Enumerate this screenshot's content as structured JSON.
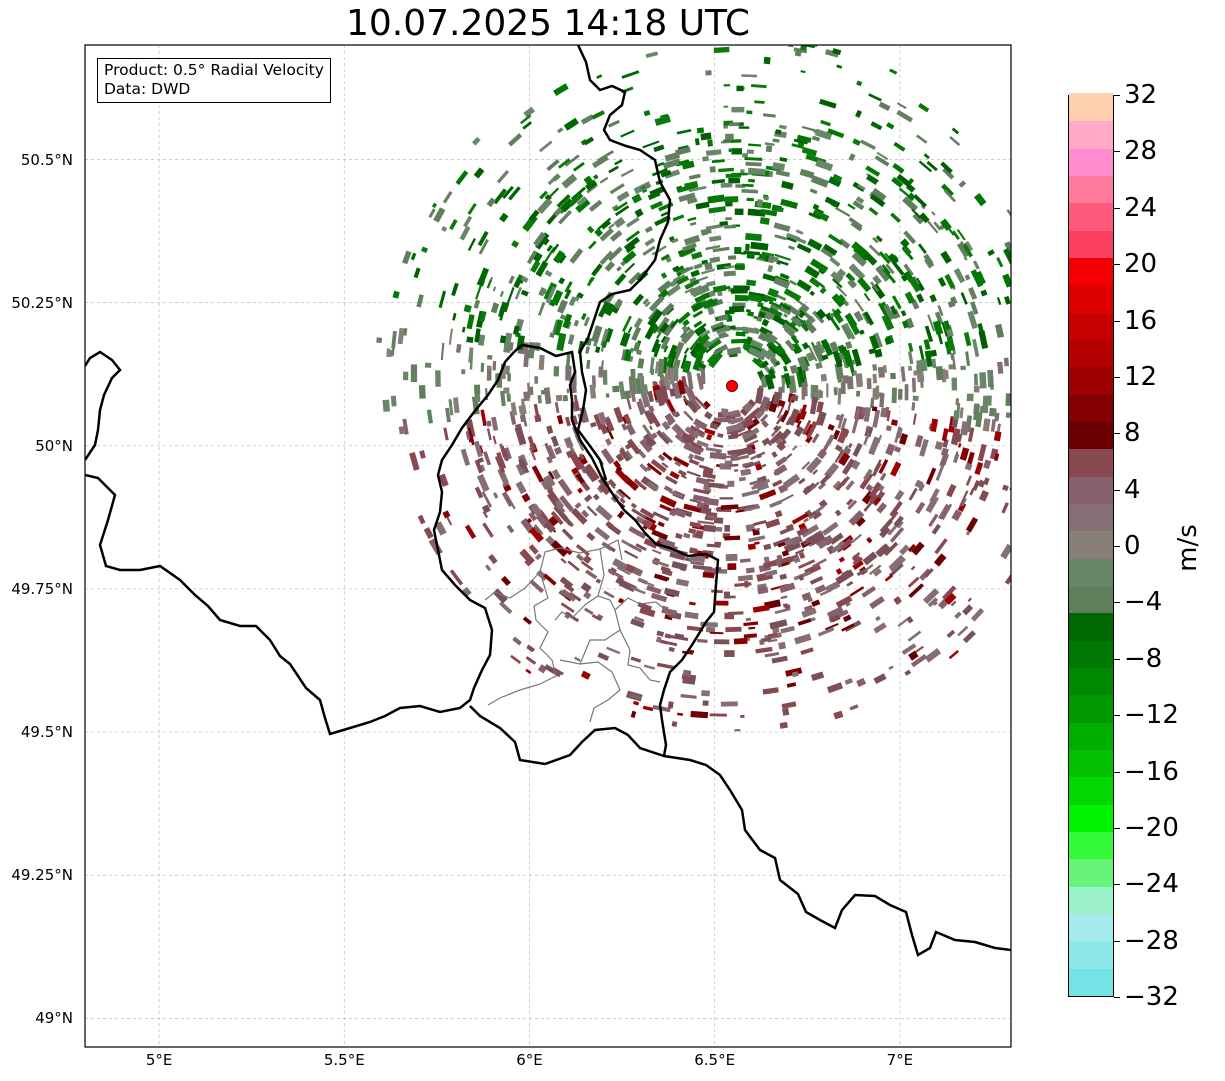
{
  "title": "10.07.2025 14:18 UTC",
  "info": {
    "product_line": "Product: 0.5° Radial Velocity",
    "data_line": "Data: DWD"
  },
  "map": {
    "lon_range": [
      4.8,
      7.3
    ],
    "lat_range": [
      48.95,
      50.7
    ],
    "grid_lines": true,
    "radar_site": {
      "lon": 6.548,
      "lat": 50.109,
      "marker": "red-circle"
    },
    "lat_ticks": [
      {
        "value": 50.5,
        "label": "50.5°N"
      },
      {
        "value": 50.25,
        "label": "50.25°N"
      },
      {
        "value": 50.0,
        "label": "50°N"
      },
      {
        "value": 49.75,
        "label": "49.75°N"
      },
      {
        "value": 49.5,
        "label": "49.5°N"
      },
      {
        "value": 49.25,
        "label": "49.25°N"
      },
      {
        "value": 49.0,
        "label": "49°N"
      }
    ],
    "lon_ticks": [
      {
        "value": 5.0,
        "label": "5°E"
      },
      {
        "value": 5.5,
        "label": "5.5°E"
      },
      {
        "value": 6.0,
        "label": "6°E"
      },
      {
        "value": 6.5,
        "label": "6.5°E"
      },
      {
        "value": 7.0,
        "label": "7°E"
      }
    ]
  },
  "colorbar": {
    "unit": "m/s",
    "min": -32,
    "max": 32,
    "step": 4,
    "tick_labels": [
      "32",
      "28",
      "24",
      "20",
      "16",
      "12",
      "8",
      "4",
      "0",
      "−4",
      "−8",
      "−12",
      "−16",
      "−20",
      "−24",
      "−28",
      "−32"
    ],
    "colors_bottom_to_top": [
      "#74e3e6",
      "#8ee8ea",
      "#a6e9ee",
      "#9cf2c8",
      "#66f57a",
      "#33fa3a",
      "#00f400",
      "#00d800",
      "#00c000",
      "#00b000",
      "#009a00",
      "#008800",
      "#007700",
      "#006800",
      "#5e7e5c",
      "#6a8669",
      "#888078",
      "#856e74",
      "#86606c",
      "#884850",
      "#6c0000",
      "#850000",
      "#9c0000",
      "#b40000",
      "#c90000",
      "#df0000",
      "#f50000",
      "#fc4060",
      "#fd5a7c",
      "#fe7a9c",
      "#ff8ccc",
      "#ffa8c8",
      "#ffcfad"
    ]
  }
}
